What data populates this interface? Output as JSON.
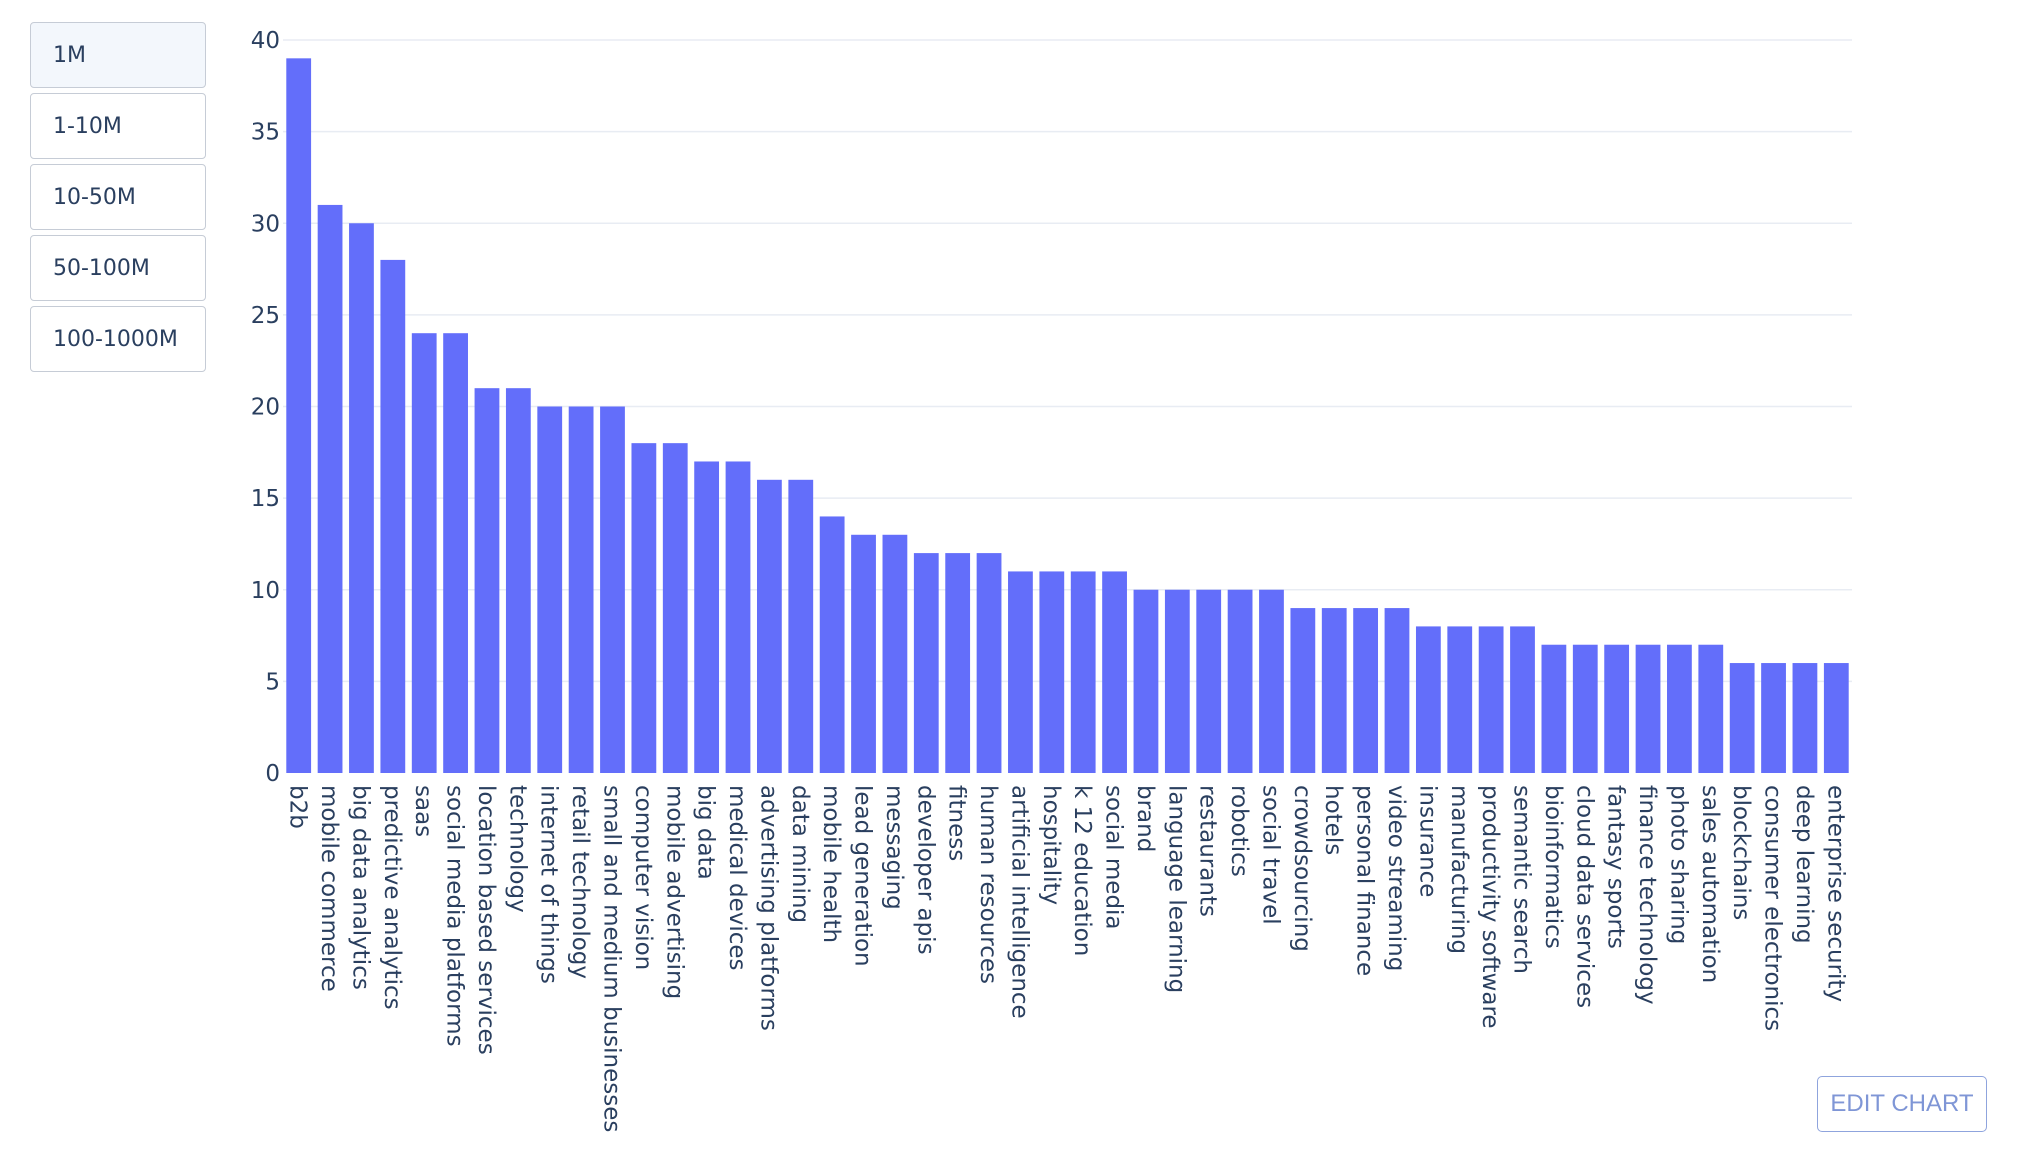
{
  "filters": {
    "items": [
      {
        "label": "1M",
        "active": true
      },
      {
        "label": "1-10M",
        "active": false
      },
      {
        "label": "10-50M",
        "active": false
      },
      {
        "label": "50-100M",
        "active": false
      },
      {
        "label": "100-1000M",
        "active": false
      }
    ]
  },
  "edit_button": {
    "label": "EDIT CHART"
  },
  "chart_data": {
    "type": "bar",
    "categories": [
      "b2b",
      "mobile commerce",
      "big data analytics",
      "predictive analytics",
      "saas",
      "social media platforms",
      "location based services",
      "technology",
      "internet of things",
      "retail technology",
      "small and medium businesses",
      "computer vision",
      "mobile advertising",
      "big data",
      "medical devices",
      "advertising platforms",
      "data mining",
      "mobile health",
      "lead generation",
      "messaging",
      "developer apis",
      "fitness",
      "human resources",
      "artificial intelligence",
      "hospitality",
      "k 12 education",
      "social media",
      "brand",
      "language learning",
      "restaurants",
      "robotics",
      "social travel",
      "crowdsourcing",
      "hotels",
      "personal finance",
      "video streaming",
      "insurance",
      "manufacturing",
      "productivity software",
      "semantic search",
      "bioinformatics",
      "cloud data services",
      "fantasy sports",
      "finance technology",
      "photo sharing",
      "sales automation",
      "blockchains",
      "consumer electronics",
      "deep learning",
      "enterprise security"
    ],
    "values": [
      39,
      31,
      30,
      28,
      24,
      24,
      21,
      21,
      20,
      20,
      20,
      18,
      18,
      17,
      17,
      16,
      16,
      14,
      13,
      13,
      12,
      12,
      12,
      11,
      11,
      11,
      11,
      10,
      10,
      10,
      10,
      10,
      9,
      9,
      9,
      9,
      8,
      8,
      8,
      8,
      7,
      7,
      7,
      7,
      7,
      7,
      6,
      6,
      6,
      6
    ],
    "yticks": [
      "0",
      "5",
      "10",
      "15",
      "20",
      "25",
      "30",
      "35",
      "40"
    ],
    "ylim": [
      0,
      40
    ],
    "bar_color": "#636efa",
    "grid_color": "#e8ecf3",
    "grid": true,
    "title": "",
    "xlabel": "",
    "ylabel": ""
  }
}
